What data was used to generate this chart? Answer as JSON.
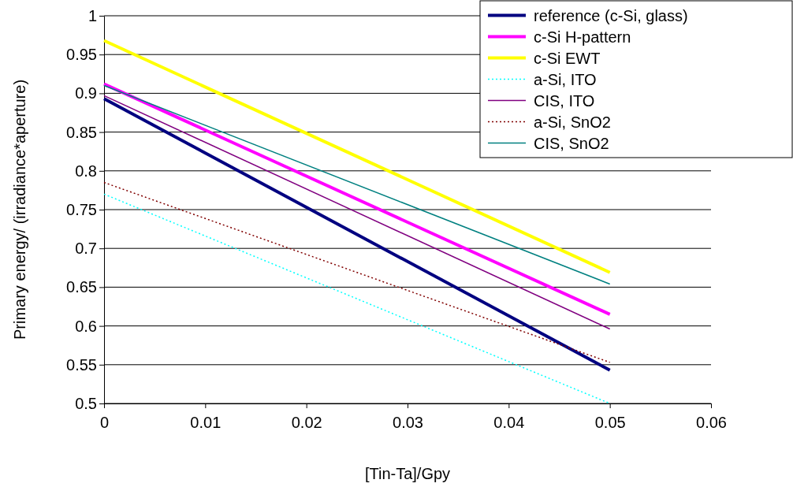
{
  "chart_data": {
    "type": "line",
    "xlabel": "[Tin-Ta]/Gpy",
    "ylabel": "Primary energy/ (irradiance*aperture)",
    "x": [
      0,
      0.05
    ],
    "xlim": [
      0,
      0.06
    ],
    "xticks": [
      0,
      0.01,
      0.02,
      0.03,
      0.04,
      0.05,
      0.06
    ],
    "ylim": [
      0.5,
      1
    ],
    "yticks": [
      0.5,
      0.55,
      0.6,
      0.65,
      0.7,
      0.75,
      0.8,
      0.85,
      0.9,
      0.95,
      1
    ],
    "grid": "y",
    "legend": "top right",
    "marker": "none",
    "series": [
      {
        "name": "reference (c-Si, glass)",
        "color": "#000080",
        "values": [
          0.893,
          0.543
        ],
        "line_style": "solid"
      },
      {
        "name": "c-Si H-pattern",
        "color": "#ff00ff",
        "values": [
          0.912,
          0.615
        ],
        "line_style": "solid"
      },
      {
        "name": "c-Si EWT",
        "color": "#ffff00",
        "values": [
          0.968,
          0.669
        ],
        "line_style": "solid"
      },
      {
        "name": "a-Si, ITO",
        "color": "#00ffff",
        "values": [
          0.77,
          0.5
        ],
        "line_style": "dotted"
      },
      {
        "name": "CIS, ITO",
        "color": "#800080",
        "values": [
          0.897,
          0.596
        ],
        "line_style": "solid"
      },
      {
        "name": "a-Si, SnO2",
        "color": "#800000",
        "values": [
          0.785,
          0.553
        ],
        "line_style": "dotted"
      },
      {
        "name": "CIS, SnO2",
        "color": "#008080",
        "values": [
          0.91,
          0.654
        ],
        "line_style": "solid"
      }
    ]
  }
}
